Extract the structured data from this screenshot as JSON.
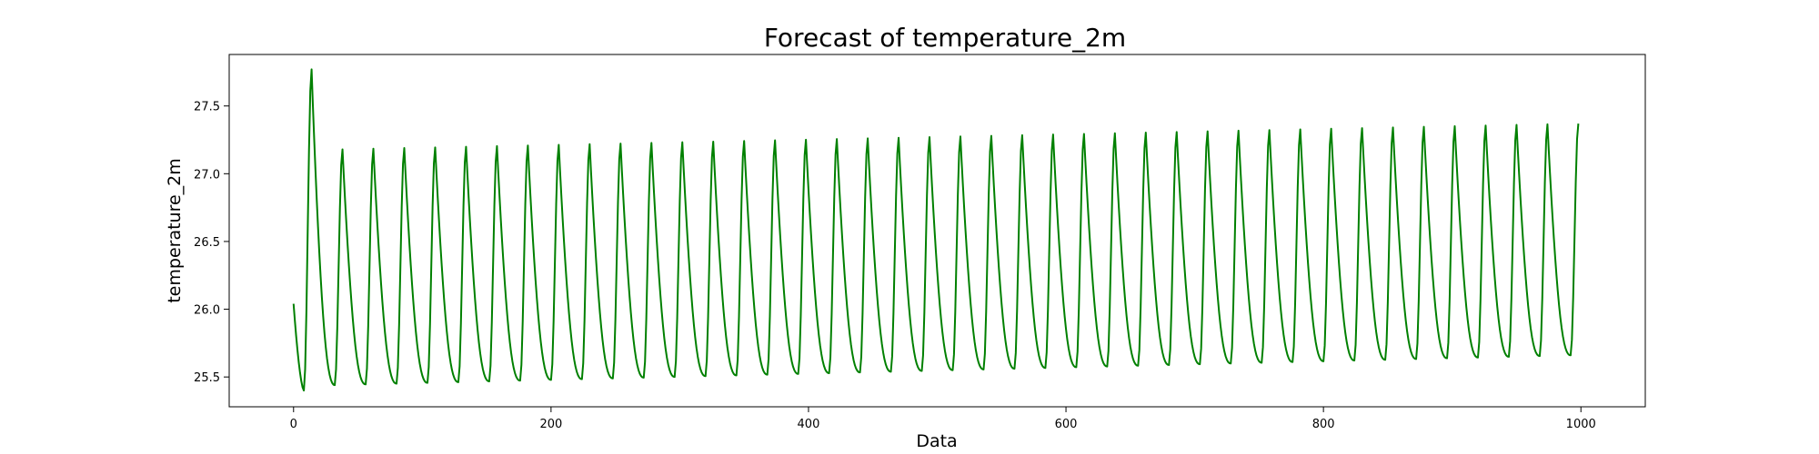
{
  "chart_data": {
    "type": "line",
    "title": "Forecast of temperature_2m",
    "xlabel": "Data",
    "ylabel": "temperature_2m",
    "xlim": [
      -50,
      1050
    ],
    "ylim": [
      25.28,
      27.88
    ],
    "x_ticks": [
      0,
      200,
      400,
      600,
      800,
      1000
    ],
    "x_tick_labels": [
      "0",
      "200",
      "400",
      "600",
      "800",
      "1000"
    ],
    "y_ticks": [
      25.5,
      26.0,
      26.5,
      27.0,
      27.5
    ],
    "y_tick_labels": [
      "25.5",
      "26.0",
      "26.5",
      "27.0",
      "27.5"
    ],
    "grid": false,
    "legend": "none",
    "series_color": "#008000",
    "series": [
      {
        "x_range": [
          0,
          999
        ],
        "initial": {
          "x_start": 0,
          "y_start": 26.04
        },
        "first_cycle": {
          "x_trough": 8,
          "y_trough": 25.4,
          "x_peak": 14,
          "y_peak": 27.77
        },
        "cycle": {
          "period": 24,
          "first_trough_x": 32,
          "peak_offset": 6,
          "trough_y_start": 25.44,
          "trough_y_end": 25.66,
          "peak_y_start": 27.18,
          "peak_y_end": 27.37
        }
      }
    ]
  }
}
